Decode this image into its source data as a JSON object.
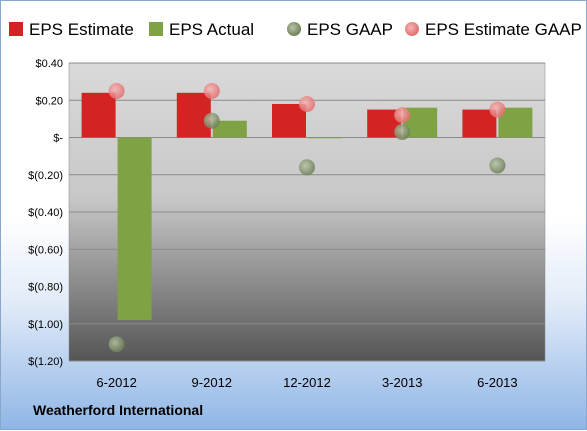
{
  "chart_data": {
    "type": "bar",
    "categories": [
      "6-2012",
      "9-2012",
      "12-2012",
      "3-2013",
      "6-2013"
    ],
    "series": [
      {
        "name": "EPS Estimate",
        "kind": "bar",
        "color": "#d42323",
        "values": [
          0.24,
          0.24,
          0.18,
          0.15,
          0.15
        ]
      },
      {
        "name": "EPS Actual",
        "kind": "bar",
        "color": "#7fa245",
        "values": [
          -0.98,
          0.09,
          0.0,
          0.16,
          0.16
        ]
      },
      {
        "name": "EPS GAAP",
        "kind": "point",
        "color": "#8ea07a",
        "values": [
          -1.11,
          0.09,
          -0.16,
          0.03,
          -0.15
        ]
      },
      {
        "name": "EPS Estimate GAAP",
        "kind": "point",
        "color": "#f08c8c",
        "values": [
          0.25,
          0.25,
          0.18,
          0.12,
          0.15
        ]
      }
    ],
    "yticks": [
      0.4,
      0.2,
      0,
      -0.2,
      -0.4,
      -0.6,
      -0.8,
      -1.0,
      -1.2
    ],
    "ytick_labels": [
      "$0.40",
      "$0.20",
      "$-",
      "$(0.20)",
      "$(0.40)",
      "$(0.60)",
      "$(0.80)",
      "$(1.00)",
      "$(1.20)"
    ],
    "ylim": [
      -1.2,
      0.4
    ],
    "legend_position": "top",
    "grid": true
  },
  "company": "Weatherford International"
}
